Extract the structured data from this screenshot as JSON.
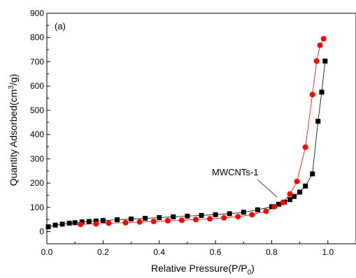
{
  "chart_data": {
    "type": "scatter",
    "panel_label": "(a)",
    "xlabel": "Relative Pressure(P/P₀)",
    "ylabel": "Quantity Adsorbed(cm³/g)",
    "xlim": [
      0.0,
      1.1
    ],
    "ylim": [
      -50,
      900
    ],
    "x_ticks": [
      "0.0",
      "0.2",
      "0.4",
      "0.6",
      "0.8",
      "1.0"
    ],
    "y_ticks": [
      "0",
      "100",
      "200",
      "300",
      "400",
      "500",
      "600",
      "700",
      "800",
      "900"
    ],
    "grid": false,
    "annotation": {
      "text": "MWCNTs-1",
      "points_to": [
        0.83,
        110
      ]
    },
    "series": [
      {
        "marker": "square",
        "color": "#000000",
        "x": [
          0.005,
          0.03,
          0.055,
          0.08,
          0.1,
          0.125,
          0.15,
          0.175,
          0.2,
          0.25,
          0.3,
          0.35,
          0.4,
          0.45,
          0.5,
          0.55,
          0.6,
          0.65,
          0.7,
          0.75,
          0.8,
          0.825,
          0.845,
          0.865,
          0.88,
          0.9,
          0.92,
          0.945,
          0.965,
          0.978,
          0.99
        ],
        "y": [
          20,
          27,
          31,
          35,
          37,
          40,
          42,
          44,
          46,
          49,
          52,
          55,
          58,
          61,
          64,
          67,
          70,
          74,
          80,
          90,
          103,
          113,
          122,
          132,
          145,
          163,
          188,
          238,
          455,
          575,
          703
        ]
      },
      {
        "marker": "circle",
        "color": "#ff0000",
        "x": [
          0.12,
          0.175,
          0.22,
          0.28,
          0.33,
          0.38,
          0.43,
          0.48,
          0.53,
          0.58,
          0.63,
          0.68,
          0.73,
          0.78,
          0.81,
          0.84,
          0.865,
          0.89,
          0.92,
          0.945,
          0.96,
          0.972,
          0.985
        ],
        "y": [
          30,
          32,
          35,
          37,
          40,
          42,
          45,
          47,
          50,
          53,
          57,
          62,
          70,
          84,
          103,
          120,
          155,
          207,
          348,
          565,
          703,
          768,
          795
        ]
      }
    ]
  }
}
